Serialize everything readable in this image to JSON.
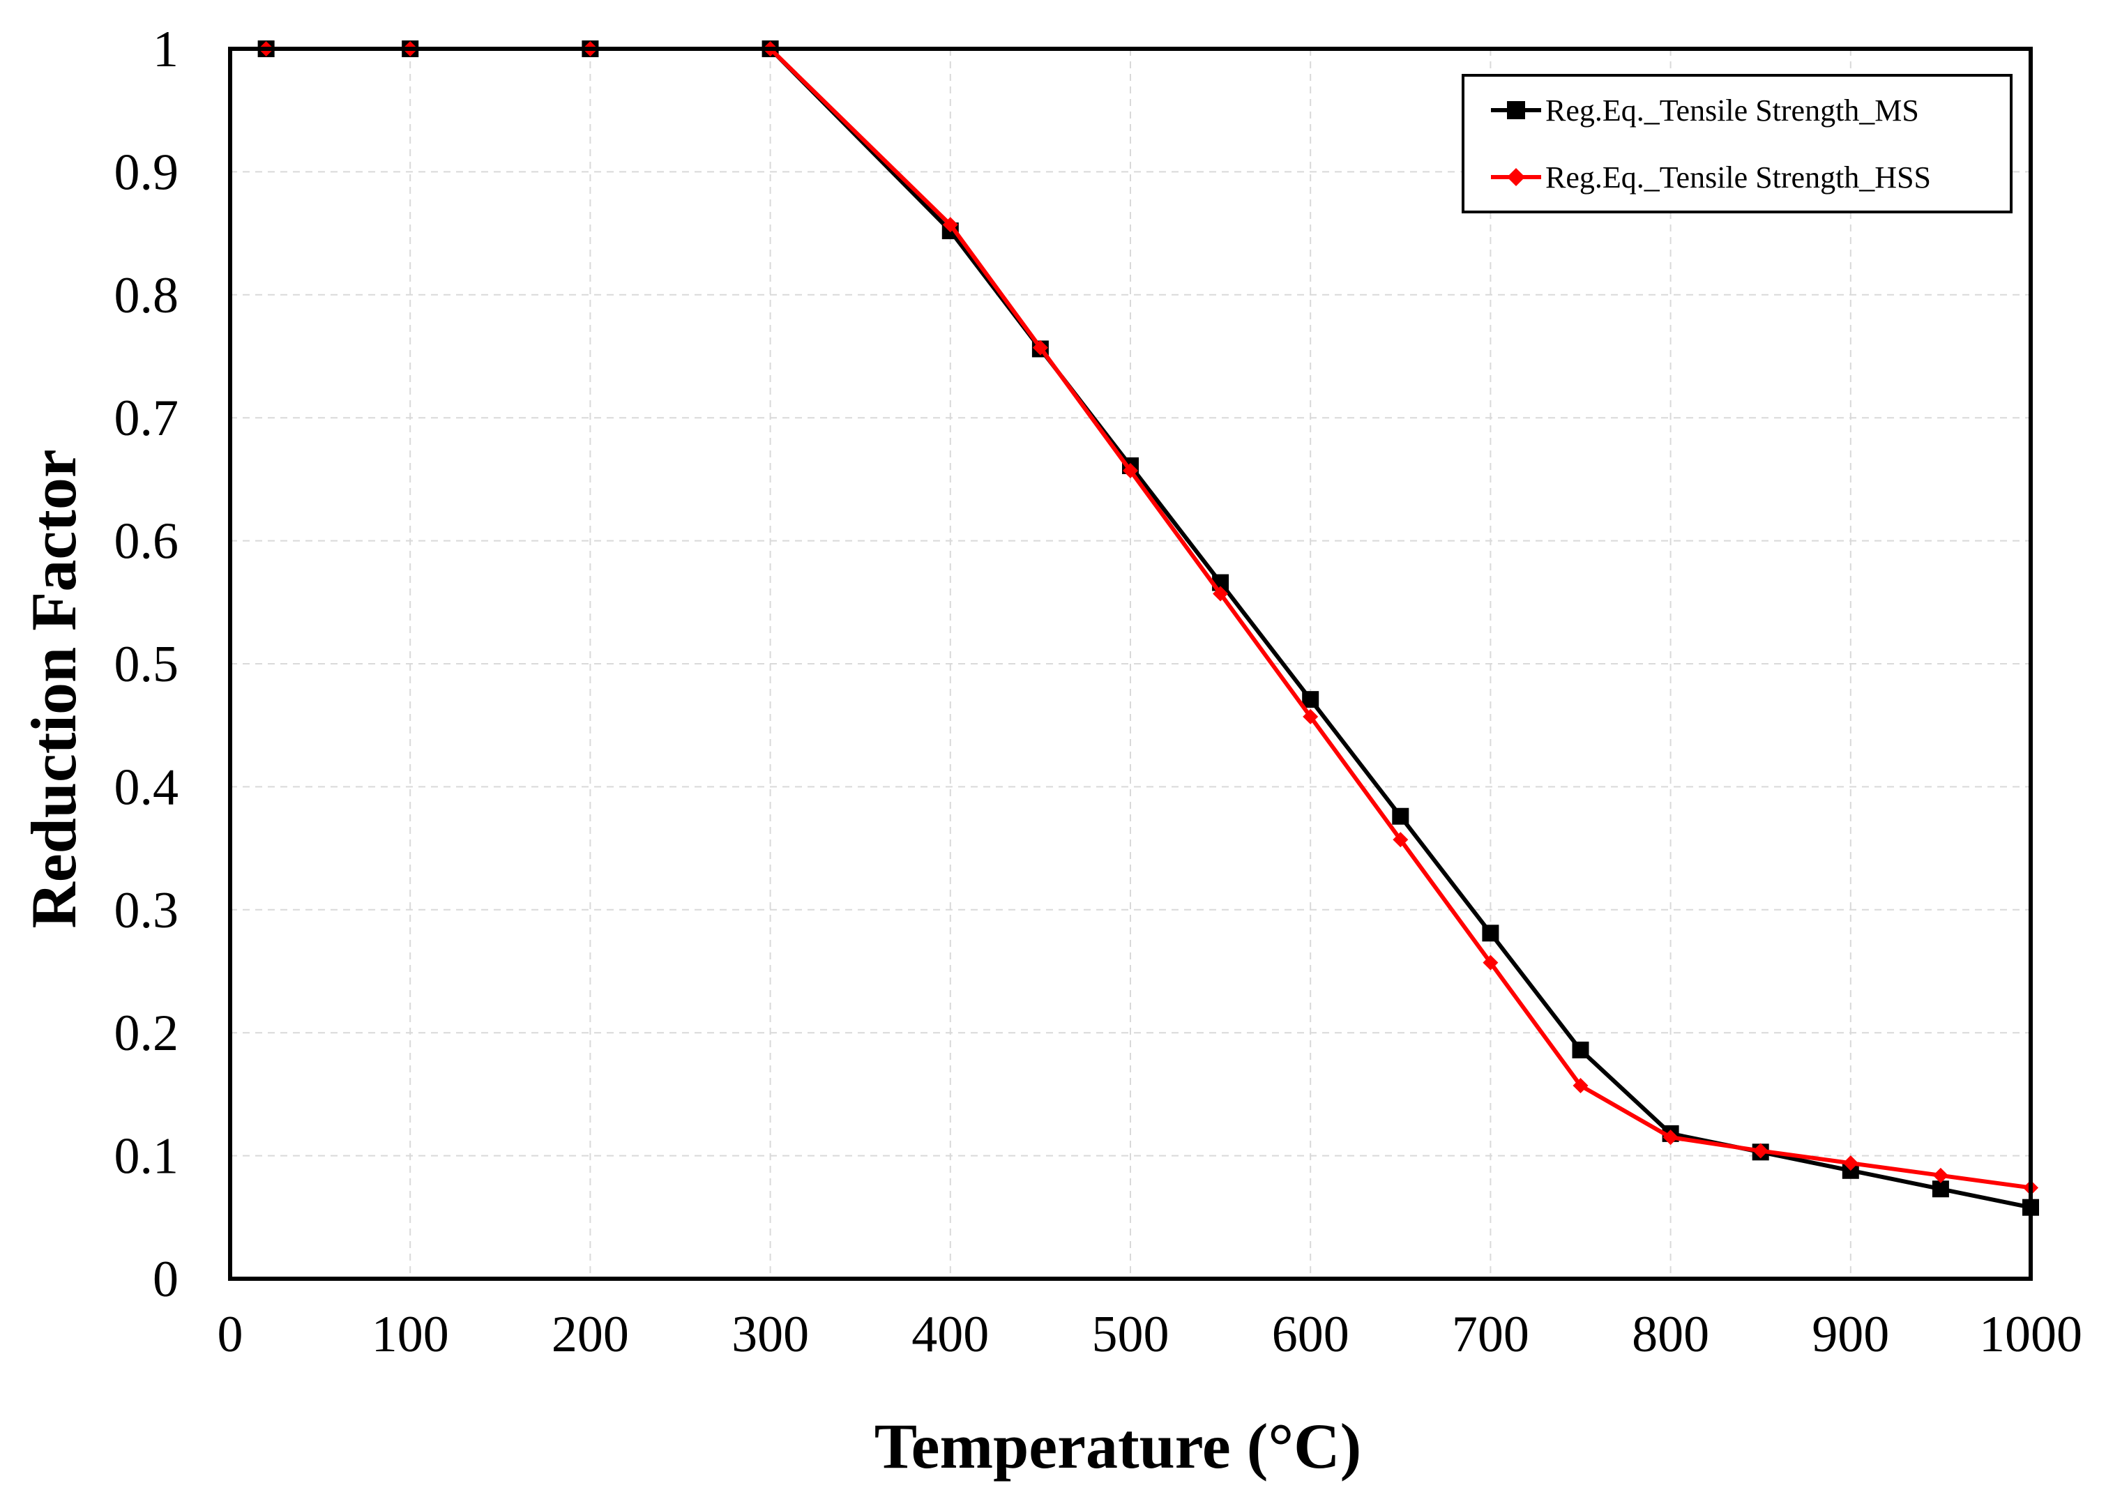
{
  "chart_data": {
    "type": "line",
    "title": "",
    "xlabel": "Temperature (°C)",
    "ylabel": "Reduction Factor",
    "xlim": [
      0,
      1000
    ],
    "ylim": [
      0,
      1
    ],
    "grid": true,
    "legend_position": "top-right",
    "x_ticks": [
      "0",
      "100",
      "200",
      "300",
      "400",
      "500",
      "600",
      "700",
      "800",
      "900",
      "1000"
    ],
    "y_ticks": [
      "0",
      "0.1",
      "0.2",
      "0.3",
      "0.4",
      "0.5",
      "0.6",
      "0.7",
      "0.8",
      "0.9",
      "1"
    ],
    "series": [
      {
        "name": "Reg.Eq._Tensile Strength_MS",
        "color": "#000000",
        "marker": "square",
        "x": [
          20,
          100,
          200,
          300,
          400,
          450,
          500,
          550,
          600,
          650,
          700,
          750,
          800,
          850,
          900,
          950,
          1000
        ],
        "y": [
          1.0,
          1.0,
          1.0,
          1.0,
          0.852,
          0.756,
          0.661,
          0.566,
          0.471,
          0.376,
          0.281,
          0.186,
          0.118,
          0.103,
          0.088,
          0.073,
          0.058
        ]
      },
      {
        "name": "Reg.Eq._Tensile Strength_HSS",
        "color": "#ff0000",
        "marker": "diamond",
        "x": [
          20,
          100,
          200,
          300,
          400,
          450,
          500,
          550,
          600,
          650,
          700,
          750,
          800,
          850,
          900,
          950,
          1000
        ],
        "y": [
          1.0,
          1.0,
          1.0,
          1.0,
          0.857,
          0.757,
          0.657,
          0.557,
          0.457,
          0.357,
          0.257,
          0.157,
          0.115,
          0.104,
          0.094,
          0.084,
          0.074
        ]
      }
    ]
  }
}
